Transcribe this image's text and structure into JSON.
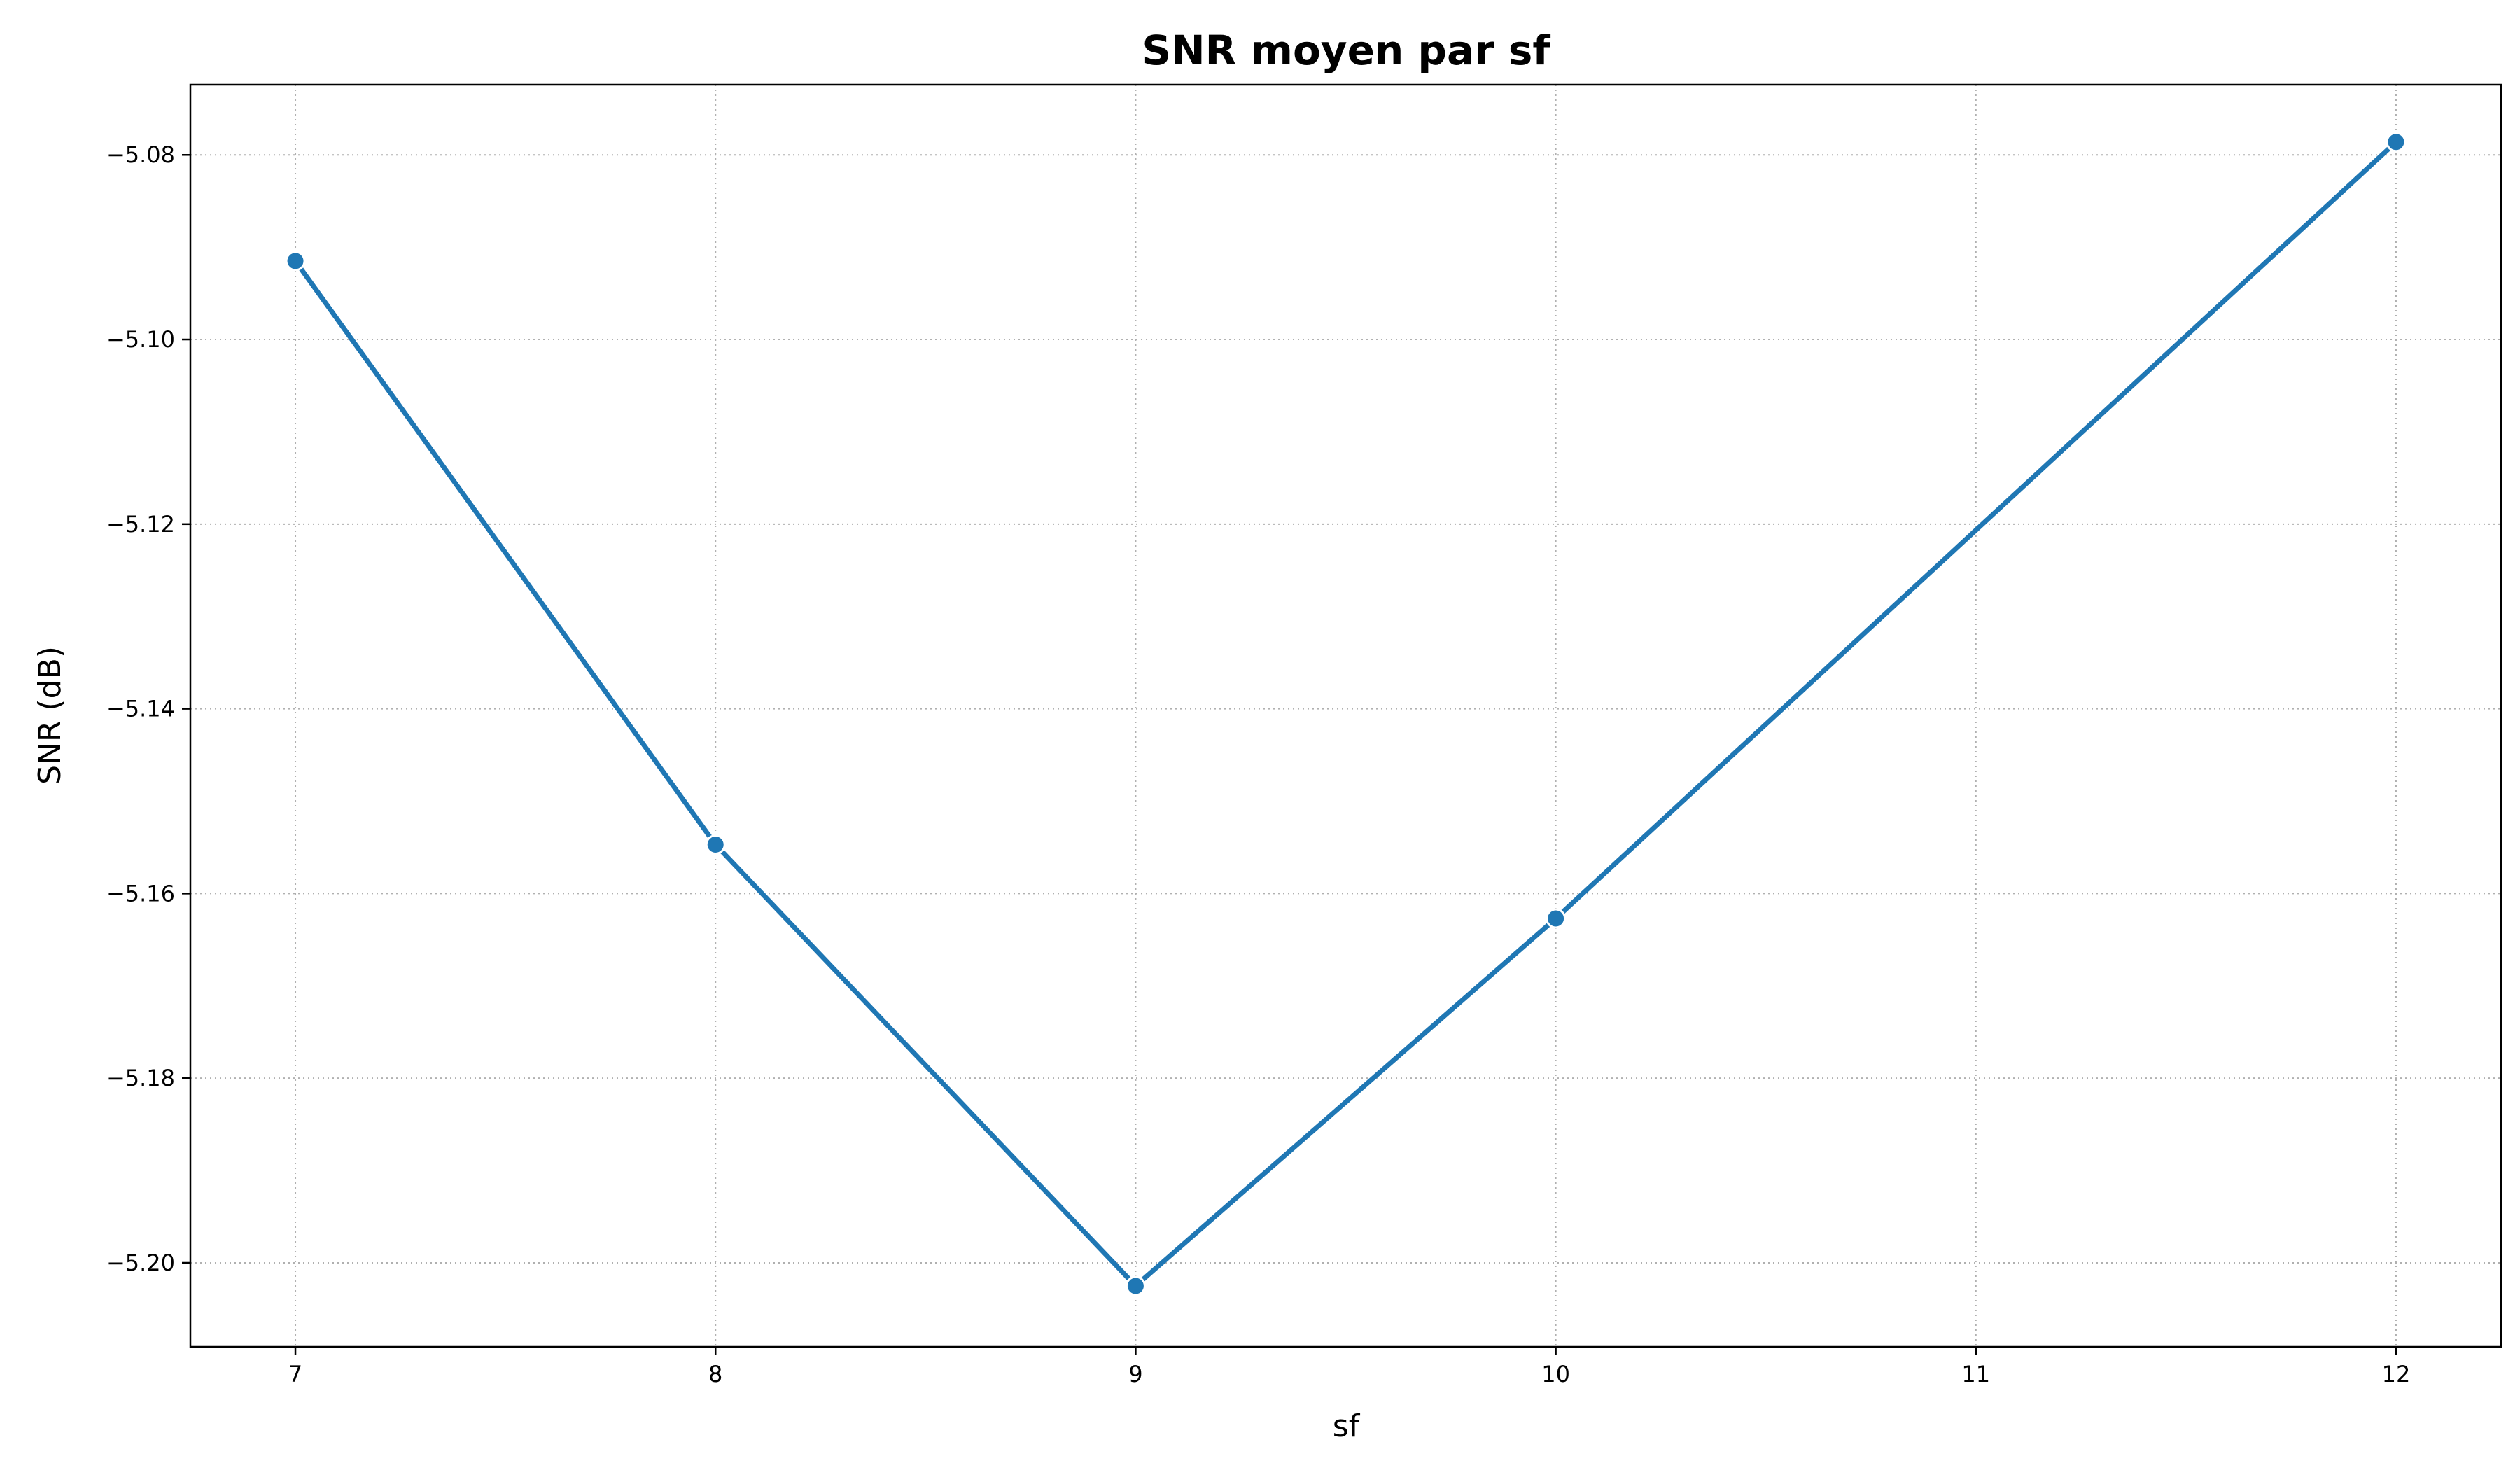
{
  "chart_data": {
    "type": "line",
    "title": "SNR moyen par sf",
    "xlabel": "sf",
    "ylabel": "SNR (dB)",
    "x": [
      7,
      8,
      9,
      10,
      11,
      12
    ],
    "x_tick_labels": [
      "7",
      "8",
      "9",
      "10",
      "11",
      "12"
    ],
    "y_ticks": [
      -5.08,
      -5.1,
      -5.12,
      -5.14,
      -5.16,
      -5.18,
      -5.2
    ],
    "y_tick_labels": [
      "−5.08",
      "−5.10",
      "−5.12",
      "−5.14",
      "−5.16",
      "−5.18",
      "−5.20"
    ],
    "xlim": [
      6.75,
      12.25
    ],
    "ylim": [
      -5.2091,
      -5.0724
    ],
    "grid": true,
    "grid_style": "dotted",
    "series": [
      {
        "color": "#1f77b4",
        "marker": "circle",
        "points": [
          {
            "x": 7,
            "y": -5.0915
          },
          {
            "x": 8,
            "y": -5.1547
          },
          {
            "x": 9,
            "y": -5.2025
          },
          {
            "x": 10,
            "y": -5.1627
          },
          {
            "x": 12,
            "y": -5.0786
          }
        ]
      }
    ]
  }
}
